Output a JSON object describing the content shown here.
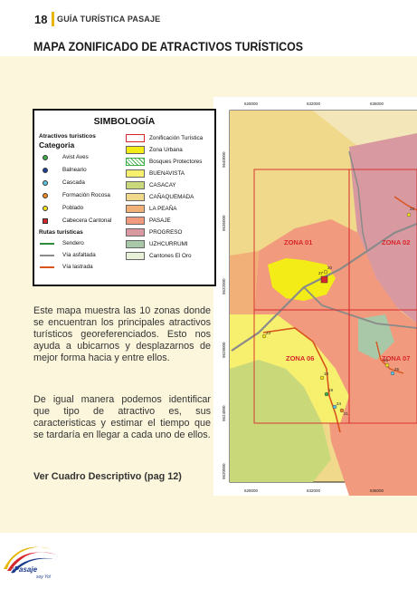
{
  "header": {
    "page_number": "18",
    "running_title": "GUÍA TURÍSTICA PASAJE"
  },
  "section_title": "MAPA ZONIFICADO DE ATRACTIVOS TURÍSTICOS",
  "legend": {
    "title": "SIMBOLOGÍA",
    "attractions_heading": "Atractivos turisticos",
    "category_heading": "Categoria",
    "categories": [
      {
        "label": "Avist Aves",
        "color": "#3fae49"
      },
      {
        "label": "Balneario",
        "color": "#1f3f9a"
      },
      {
        "label": "Cascada",
        "color": "#5fc4e0"
      },
      {
        "label": "Formación Rocosa",
        "color": "#f08a24"
      },
      {
        "label": "Poblado",
        "color": "#f4e11c"
      },
      {
        "label": "Cabecera Cantonal",
        "color": "#d7262b"
      }
    ],
    "routes_heading": "Rutas turisticas",
    "routes": [
      {
        "label": "Sendero",
        "color": "#2e8b3a"
      },
      {
        "label": "Vía asfaltada",
        "color": "#8a8a8a"
      },
      {
        "label": "Vía lastrada",
        "color": "#d9541e"
      }
    ],
    "zones": [
      {
        "label": "Zonificación Turística",
        "color": "#ffffff"
      },
      {
        "label": "Zona Urbana",
        "color": "#f3ec16"
      },
      {
        "label": "Bosques Protectores",
        "color": "#ffffff"
      },
      {
        "label": "BUENAVISTA",
        "color": "#f6f06e"
      },
      {
        "label": "CASACAY",
        "color": "#c9d97a"
      },
      {
        "label": "CAÑAQUEMADA",
        "color": "#f0d98a"
      },
      {
        "label": "LA PEAÑA",
        "color": "#f2b079"
      },
      {
        "label": "PASAJE",
        "color": "#f29a7d"
      },
      {
        "label": "PROGRESO",
        "color": "#d89aa0"
      },
      {
        "label": "UZHCURRUMI",
        "color": "#a8c8a8"
      },
      {
        "label": "Cantones El Oro",
        "color": "#e8f0d8"
      }
    ]
  },
  "map": {
    "coords_x": [
      "628000",
      "632000",
      "636000"
    ],
    "coords_y": [
      "9640000",
      "9636000",
      "9632000",
      "9628000",
      "9624000",
      "9620000"
    ],
    "zones": [
      "ZONA 01",
      "ZONA 02",
      "ZONA 06",
      "ZONA 07"
    ],
    "point_labels": [
      "22",
      "20",
      "18",
      "19",
      "21",
      "23",
      "24",
      "25",
      "26",
      "27"
    ]
  },
  "paragraphs": [
    "Este mapa muestra las 10 zonas donde se encuentran los principales atractivos turísticos georeferenciados. Esto nos ayuda a ubicarnos y desplazarnos de mejor forma hacia y entre ellos.",
    "De igual manera podemos identificar que tipo de atractivo es, sus caracteristicas y estimar el tiempo que se tardaría en llegar a cada uno de ellos."
  ],
  "cta": "Ver Cuadro Descriptivo (pag 12)",
  "logo": {
    "name": "¡Pasaje",
    "tagline": "soy Yo!"
  }
}
